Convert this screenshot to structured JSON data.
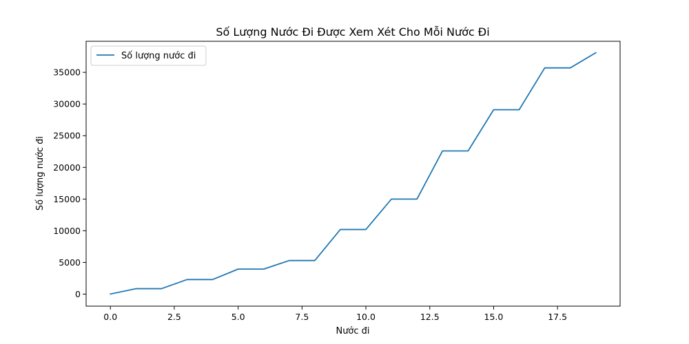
{
  "chart_data": {
    "type": "line",
    "title": "Số Lượng Nước Đi Được Xem Xét Cho Mỗi Nước Đi",
    "xlabel": "Nước đi",
    "ylabel": "Số lượng nước đi",
    "xlim": [
      -0.95,
      19.95
    ],
    "ylim": [
      -1900,
      39900
    ],
    "xticks": [
      0,
      2.5,
      5,
      7.5,
      10,
      12.5,
      15,
      17.5
    ],
    "xtick_labels": [
      "0.0",
      "2.5",
      "5.0",
      "7.5",
      "10.0",
      "12.5",
      "15.0",
      "17.5"
    ],
    "yticks": [
      0,
      5000,
      10000,
      15000,
      20000,
      25000,
      30000,
      35000
    ],
    "ytick_labels": [
      "0",
      "5000",
      "10000",
      "15000",
      "20000",
      "25000",
      "30000",
      "35000"
    ],
    "grid": false,
    "legend_position": "top-left",
    "series": [
      {
        "name": "Số lượng nước đi",
        "color": "#1f77b4",
        "x": [
          0,
          1,
          2,
          3,
          4,
          5,
          6,
          7,
          8,
          9,
          10,
          11,
          12,
          13,
          14,
          15,
          16,
          17,
          18,
          19
        ],
        "y": [
          20,
          860,
          860,
          2300,
          2300,
          3950,
          3950,
          5300,
          5300,
          10200,
          10200,
          15000,
          15000,
          22600,
          22600,
          29100,
          29100,
          35700,
          35700,
          38100
        ]
      }
    ]
  }
}
